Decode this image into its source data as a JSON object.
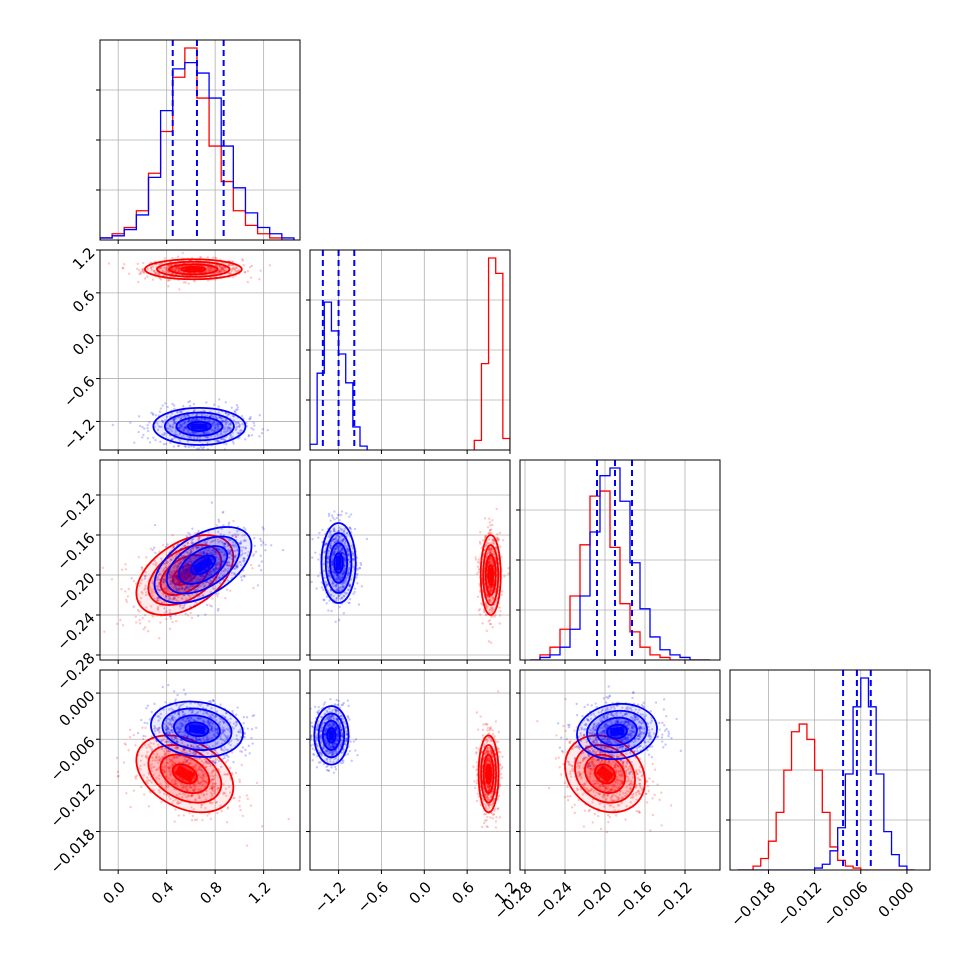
{
  "chart_data": {
    "type": "corner",
    "title": "",
    "grid": true,
    "series": [
      {
        "name": "",
        "color": "#0000ff"
      },
      {
        "name": "",
        "color": "#ff0000"
      }
    ],
    "parameters": [
      {
        "index": 0,
        "range": [
          -0.15,
          1.5
        ],
        "ticks": [
          0.0,
          0.4,
          0.8,
          1.2
        ],
        "tick_labels": [
          "0.0",
          "0.4",
          "0.8",
          "1.2"
        ]
      },
      {
        "index": 1,
        "range": [
          -1.6,
          1.2
        ],
        "ticks": [
          -1.2,
          -0.6,
          0.0,
          0.6,
          1.2
        ],
        "tick_labels": [
          "−1.2",
          "−0.6",
          "0.0",
          "0.6",
          "1.2"
        ]
      },
      {
        "index": 2,
        "range": [
          -0.285,
          -0.085
        ],
        "ticks": [
          -0.28,
          -0.24,
          -0.2,
          -0.16,
          -0.12
        ],
        "tick_labels": [
          "−0.28",
          "−0.24",
          "−0.20",
          "−0.16",
          "−0.12"
        ]
      },
      {
        "index": 3,
        "range": [
          -0.023,
          0.003
        ],
        "ticks": [
          -0.018,
          -0.012,
          -0.006,
          0.0
        ],
        "tick_labels": [
          "−0.018",
          "−0.012",
          "−0.006",
          "0.000"
        ]
      }
    ],
    "histograms": [
      {
        "param": 0,
        "quantile_lines": {
          "color": "#0000ff",
          "values": [
            0.45,
            0.65,
            0.87
          ]
        },
        "blue": {
          "edges": [
            -0.15,
            -0.05,
            0.05,
            0.15,
            0.25,
            0.35,
            0.45,
            0.55,
            0.65,
            0.75,
            0.85,
            0.95,
            1.05,
            1.15,
            1.25,
            1.35,
            1.45
          ],
          "counts": [
            0.01,
            0.02,
            0.05,
            0.12,
            0.3,
            0.62,
            0.82,
            0.85,
            0.8,
            0.68,
            0.45,
            0.25,
            0.13,
            0.06,
            0.03,
            0.01
          ]
        },
        "red": {
          "edges": [
            -0.15,
            -0.05,
            0.05,
            0.15,
            0.25,
            0.35,
            0.45,
            0.55,
            0.65,
            0.75,
            0.85,
            0.95,
            1.05,
            1.15,
            1.25,
            1.35,
            1.45
          ],
          "counts": [
            0.01,
            0.03,
            0.06,
            0.14,
            0.32,
            0.52,
            0.78,
            0.92,
            0.68,
            0.45,
            0.28,
            0.14,
            0.07,
            0.03,
            0.01,
            0.0
          ]
        }
      },
      {
        "param": 1,
        "quantile_lines": {
          "color": "#0000ff",
          "values": [
            -1.42,
            -1.2,
            -0.98
          ]
        },
        "blue": {
          "edges": [
            -1.6,
            -1.5,
            -1.4,
            -1.3,
            -1.2,
            -1.1,
            -1.0,
            -0.9,
            -0.8
          ],
          "counts": [
            0.03,
            0.4,
            0.77,
            0.62,
            0.5,
            0.35,
            0.12,
            0.02
          ]
        },
        "red": {
          "edges": [
            0.7,
            0.8,
            0.9,
            1.0,
            1.1,
            1.2
          ],
          "counts": [
            0.05,
            0.45,
            1.0,
            0.92,
            0.06
          ]
        }
      },
      {
        "param": 2,
        "quantile_lines": {
          "color": "#0000ff",
          "values": [
            -0.208,
            -0.19,
            -0.173
          ]
        },
        "blue": {
          "edges": [
            -0.275,
            -0.265,
            -0.255,
            -0.245,
            -0.235,
            -0.225,
            -0.215,
            -0.205,
            -0.195,
            -0.185,
            -0.175,
            -0.165,
            -0.155,
            -0.145,
            -0.135,
            -0.125,
            -0.115,
            -0.105,
            -0.095
          ],
          "counts": [
            0.0,
            0.01,
            0.02,
            0.05,
            0.12,
            0.25,
            0.5,
            0.72,
            0.75,
            0.62,
            0.38,
            0.2,
            0.09,
            0.04,
            0.02,
            0.01,
            0.0,
            0.0
          ]
        },
        "red": {
          "edges": [
            -0.275,
            -0.265,
            -0.255,
            -0.245,
            -0.235,
            -0.225,
            -0.215,
            -0.205,
            -0.195,
            -0.185,
            -0.175,
            -0.165,
            -0.155,
            -0.145,
            -0.135,
            -0.125,
            -0.115,
            -0.105,
            -0.095
          ],
          "counts": [
            0.0,
            0.02,
            0.05,
            0.12,
            0.25,
            0.45,
            0.64,
            0.66,
            0.44,
            0.22,
            0.11,
            0.05,
            0.02,
            0.01,
            0.0,
            0.0,
            0.0,
            0.0
          ]
        }
      },
      {
        "param": 3,
        "quantile_lines": {
          "color": "#0000ff",
          "values": [
            -0.0083,
            -0.0065,
            -0.0047
          ]
        },
        "blue": {
          "edges": [
            -0.022,
            -0.021,
            -0.02,
            -0.019,
            -0.018,
            -0.017,
            -0.016,
            -0.015,
            -0.014,
            -0.013,
            -0.012,
            -0.011,
            -0.01,
            -0.009,
            -0.008,
            -0.007,
            -0.006,
            -0.005,
            -0.004,
            -0.003,
            -0.002,
            -0.001,
            0.0,
            0.001
          ],
          "counts": [
            0.0,
            0.0,
            0.0,
            0.0,
            0.0,
            0.0,
            0.0,
            0.0,
            0.0,
            0.0,
            0.01,
            0.03,
            0.1,
            0.22,
            0.5,
            0.85,
            1.0,
            0.85,
            0.5,
            0.2,
            0.08,
            0.02,
            0.0
          ]
        },
        "red": {
          "edges": [
            -0.022,
            -0.021,
            -0.02,
            -0.019,
            -0.018,
            -0.017,
            -0.016,
            -0.015,
            -0.014,
            -0.013,
            -0.012,
            -0.011,
            -0.01,
            -0.009,
            -0.008,
            -0.007,
            -0.006,
            -0.005,
            -0.004,
            -0.003,
            -0.002,
            -0.001,
            0.0,
            0.001
          ],
          "counts": [
            0.0,
            0.0,
            0.02,
            0.06,
            0.15,
            0.3,
            0.52,
            0.72,
            0.76,
            0.68,
            0.52,
            0.3,
            0.12,
            0.05,
            0.02,
            0.01,
            0.0,
            0.0,
            0.0,
            0.0,
            0.0,
            0.0,
            0.0
          ]
        }
      }
    ],
    "clusters": [
      {
        "x": 0,
        "y": 1,
        "blue": {
          "cx": 0.67,
          "cy": -1.27,
          "sx": 0.19,
          "sy": 0.13,
          "rho": 0.0
        },
        "red": {
          "cx": 0.62,
          "cy": 0.93,
          "sx": 0.2,
          "sy": 0.07,
          "rho": 0.0
        }
      },
      {
        "x": 0,
        "y": 2,
        "blue": {
          "cx": 0.7,
          "cy": -0.19,
          "sx": 0.2,
          "sy": 0.019,
          "rho": 0.5
        },
        "red": {
          "cx": 0.55,
          "cy": -0.2,
          "sx": 0.2,
          "sy": 0.02,
          "rho": 0.45
        }
      },
      {
        "x": 0,
        "y": 3,
        "blue": {
          "cx": 0.65,
          "cy": -0.0047,
          "sx": 0.19,
          "sy": 0.0018,
          "rho": -0.15
        },
        "red": {
          "cx": 0.55,
          "cy": -0.0105,
          "sx": 0.2,
          "sy": 0.0025,
          "rho": -0.35
        }
      },
      {
        "x": 1,
        "y": 2,
        "blue": {
          "cx": -1.2,
          "cy": -0.188,
          "sx": 0.12,
          "sy": 0.02,
          "rho": 0.0
        },
        "red": {
          "cx": 0.93,
          "cy": -0.2,
          "sx": 0.07,
          "sy": 0.02,
          "rho": 0.0
        }
      },
      {
        "x": 1,
        "y": 3,
        "blue": {
          "cx": -1.3,
          "cy": -0.0055,
          "sx": 0.12,
          "sy": 0.0019,
          "rho": 0.0
        },
        "red": {
          "cx": 0.9,
          "cy": -0.0105,
          "sx": 0.07,
          "sy": 0.0025,
          "rho": 0.0
        }
      },
      {
        "x": 2,
        "y": 3,
        "blue": {
          "cx": -0.188,
          "cy": -0.005,
          "sx": 0.02,
          "sy": 0.0018,
          "rho": 0.1
        },
        "red": {
          "cx": -0.2,
          "cy": -0.0105,
          "sx": 0.02,
          "sy": 0.0025,
          "rho": -0.2
        }
      }
    ]
  }
}
